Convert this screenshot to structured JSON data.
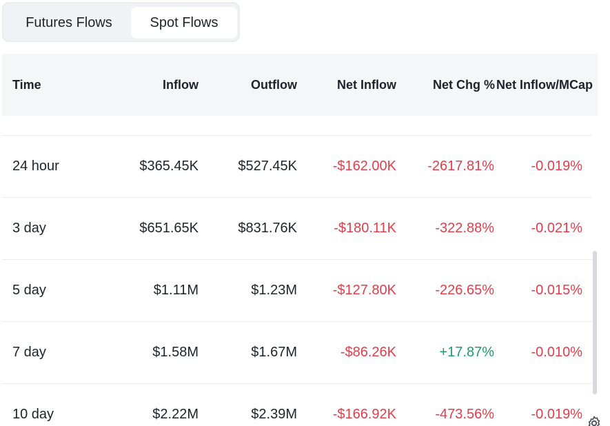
{
  "tabs": {
    "futures_label": "Futures Flows",
    "spot_label": "Spot Flows"
  },
  "table": {
    "headers": {
      "time": "Time",
      "inflow": "Inflow",
      "outflow": "Outflow",
      "net_inflow": "Net Inflow",
      "net_chg": "Net Chg %",
      "net_inflow_mcap": "Net Inflow/MCap"
    },
    "rows": [
      {
        "time": "24 hour",
        "inflow": "$365.45K",
        "outflow": "$527.45K",
        "net_inflow": "-$162.00K",
        "net_chg": "-2617.81%",
        "net_inflow_mcap": "-0.019%"
      },
      {
        "time": "3 day",
        "inflow": "$651.65K",
        "outflow": "$831.76K",
        "net_inflow": "-$180.11K",
        "net_chg": "-322.88%",
        "net_inflow_mcap": "-0.021%"
      },
      {
        "time": "5 day",
        "inflow": "$1.11M",
        "outflow": "$1.23M",
        "net_inflow": "-$127.80K",
        "net_chg": "-226.65%",
        "net_inflow_mcap": "-0.015%"
      },
      {
        "time": "7 day",
        "inflow": "$1.58M",
        "outflow": "$1.67M",
        "net_inflow": "-$86.26K",
        "net_chg": "+17.87%",
        "net_inflow_mcap": "-0.010%"
      },
      {
        "time": "10 day",
        "inflow": "$2.22M",
        "outflow": "$2.39M",
        "net_inflow": "-$166.92K",
        "net_chg": "-473.56%",
        "net_inflow_mcap": "-0.019%"
      }
    ]
  },
  "colors": {
    "negative": "#e33d4a",
    "positive": "#1a9e6b"
  },
  "icons": {
    "settings": "gear-icon"
  }
}
